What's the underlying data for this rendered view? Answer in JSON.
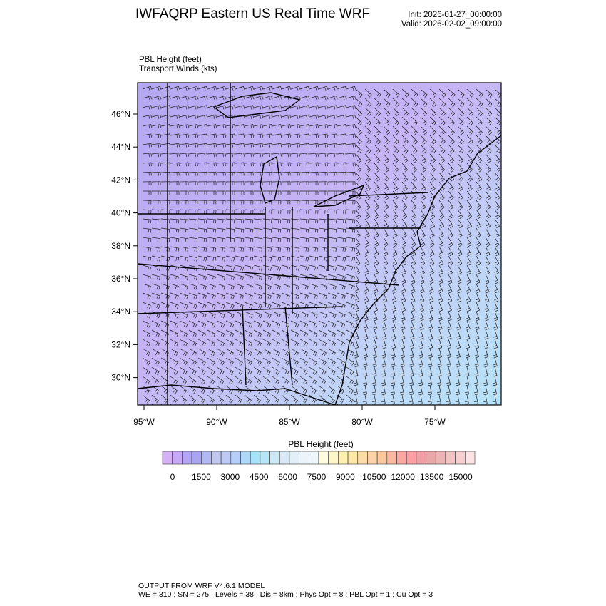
{
  "header": {
    "title": "IWFAQRP Eastern US Real Time WRF",
    "init": "Init: 2026-01-27_00:00:00",
    "valid": "Valid: 2026-02-02_09:00:00"
  },
  "plot": {
    "field_label": "PBL Height   (feet)",
    "wind_label": "Transport Winds   (kts)",
    "lat_labels": [
      "46°N",
      "44°N",
      "42°N",
      "40°N",
      "38°N",
      "36°N",
      "34°N",
      "32°N",
      "30°N"
    ],
    "lon_labels": [
      "95°W",
      "90°W",
      "85°W",
      "80°W",
      "75°W"
    ],
    "background_colors": {
      "west": "#b4a8f2",
      "central": "#c6b4f5",
      "east_ocean": "#b8e4f8"
    }
  },
  "colorbar": {
    "title": "PBL Height  (feet)",
    "labels": [
      "0",
      "1500",
      "3000",
      "4500",
      "6000",
      "7500",
      "9000",
      "10500",
      "12000",
      "13500",
      "15000"
    ],
    "colors": [
      "#d5b0f5",
      "#c7a8f5",
      "#b4a6f5",
      "#a8a6f2",
      "#b2b8f2",
      "#c0c8f2",
      "#bccaf5",
      "#b6cff8",
      "#aed8fa",
      "#a8e2f8",
      "#b4e6f5",
      "#cce8f5",
      "#d8e8f5",
      "#e2eff8",
      "#eaf4fa",
      "#ecf6fb",
      "#fffce0",
      "#fff6c8",
      "#fdf0b0",
      "#fde8a8",
      "#fcdca8",
      "#fcd2a8",
      "#fcc8a0",
      "#fcb8a0",
      "#fca8a0",
      "#fca0a4",
      "#f0a0a4",
      "#e8a8a8",
      "#ecb4b4",
      "#f2c4c4",
      "#f6d0d0",
      "#fde4e4"
    ]
  },
  "footer": {
    "line1": "OUTPUT FROM WRF V4.6.1 MODEL",
    "line2": "WE = 310 ; SN = 275 ; Levels = 38 ; Dis = 8km ; Phys Opt = 8 ; PBL Opt = 1 ; Cu Opt = 3"
  }
}
